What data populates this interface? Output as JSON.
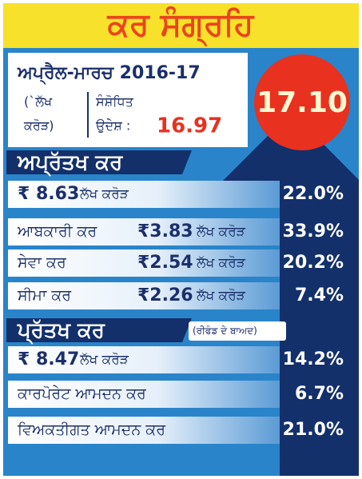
{
  "header": {
    "title": "ਕਰ ਸੰਗ੍ਰਹਿ",
    "period": "ਅਪ੍ਰੈਲ-ਮਾਰਚ 2016-17",
    "unit_note": [
      "(`ਲੱਖ",
      "ਕਰੋੜ)"
    ],
    "revised_target_label": [
      "ਸੰਸ਼ੋਧਿਤ",
      "ਉਦੇਸ਼ :"
    ],
    "revised_target": "16.97",
    "actual": "17.10"
  },
  "indirect_tax": {
    "heading": "ਅਪ੍ਰੱਤਖ ਕਰ",
    "rows": [
      {
        "amount": "₹ 8.63",
        "unit": "ਲੱਖ ਕਰੋੜ",
        "share": "22.0%"
      },
      {
        "label": "ਆਬਕਾਰੀ ਕਰ",
        "amount": "₹3.83",
        "unit": "ਲੱਖ ਕਰੋੜ",
        "share": "33.9%"
      },
      {
        "label": "ਸੇਵਾ ਕਰ",
        "amount": "₹2.54",
        "unit": "ਲੱਖ ਕਰੋੜ",
        "share": "20.2%"
      },
      {
        "label": "ਸੀਮਾ ਕਰ",
        "amount": "₹2.26",
        "unit": "ਲੱਖ ਕਰੋੜ",
        "share": "7.4%"
      }
    ]
  },
  "direct_tax": {
    "heading": "ਪ੍ਰੱਤਖ ਕਰ",
    "note": "(ਰੀਫੰਡ ਦੇ ਬਾਅਦ)",
    "rows": [
      {
        "amount": "₹ 8.47",
        "unit": "ਲੱਖ ਕਰੋੜ",
        "share": "14.2%"
      },
      {
        "label": "ਕਾਰਪੋਰੇਟ ਆਮਦਨ ਕਰ",
        "share": "6.7%"
      },
      {
        "label": "ਵਿਅਕਤੀਗਤ ਆਮਦਨ ਕਰ",
        "share": "21.0%"
      }
    ]
  }
}
